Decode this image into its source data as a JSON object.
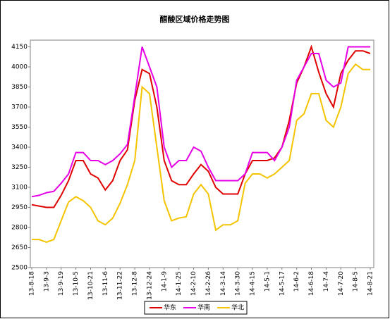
{
  "chart_data": {
    "type": "line",
    "title": "醋酸区域价格走势图",
    "categories": [
      "13-8-18",
      null,
      "13-9-3",
      null,
      "13-9-19",
      null,
      "13-10-5",
      null,
      "13-10-21",
      null,
      "13-11-6",
      null,
      "13-11-22",
      null,
      "13-12-8",
      null,
      "13-12-24",
      null,
      "14-1-9",
      null,
      "14-1-25",
      null,
      "14-2-10",
      null,
      "14-2-26",
      null,
      "14-3-14",
      null,
      "14-3-30",
      null,
      "14-4-15",
      null,
      "14-5-1",
      null,
      "14-5-17",
      null,
      "14-6-2",
      null,
      "14-6-18",
      null,
      "14-7-4",
      null,
      "14-7-20",
      null,
      "14-8-5",
      null,
      "14-8-21"
    ],
    "series": [
      {
        "name": "华东",
        "color": "#e00000",
        "values": [
          2970,
          2960,
          2950,
          2950,
          3040,
          3150,
          3300,
          3300,
          3200,
          3170,
          3080,
          3150,
          3300,
          3380,
          3750,
          3980,
          3950,
          3700,
          3300,
          3150,
          3120,
          3120,
          3200,
          3270,
          3220,
          3100,
          3050,
          3050,
          3050,
          3200,
          3300,
          3300,
          3300,
          3320,
          3400,
          3600,
          3880,
          4000,
          4150,
          3960,
          3800,
          3700,
          3950,
          4050,
          4120,
          4120,
          4100
        ]
      },
      {
        "name": "华南",
        "color": "#e600e6",
        "values": [
          3030,
          3040,
          3060,
          3070,
          3130,
          3200,
          3360,
          3360,
          3300,
          3300,
          3270,
          3300,
          3350,
          3420,
          3780,
          4150,
          4000,
          3850,
          3400,
          3250,
          3300,
          3300,
          3400,
          3370,
          3250,
          3150,
          3150,
          3150,
          3150,
          3200,
          3360,
          3360,
          3360,
          3300,
          3400,
          3550,
          3900,
          4000,
          4100,
          4100,
          3900,
          3850,
          3880,
          4150,
          4150,
          4150,
          4150
        ]
      },
      {
        "name": "华北",
        "color": "#f5c400",
        "values": [
          2710,
          2710,
          2690,
          2710,
          2850,
          2990,
          3030,
          3000,
          2950,
          2850,
          2820,
          2870,
          2980,
          3120,
          3300,
          3850,
          3800,
          3400,
          3000,
          2850,
          2870,
          2880,
          3050,
          3120,
          3050,
          2780,
          2820,
          2820,
          2850,
          3130,
          3200,
          3200,
          3170,
          3200,
          3250,
          3300,
          3600,
          3650,
          3800,
          3800,
          3600,
          3550,
          3700,
          3950,
          4020,
          3980,
          3980
        ]
      }
    ],
    "ylim": [
      2500,
      4200
    ],
    "yticks": [
      2500,
      2650,
      2800,
      2950,
      3100,
      3250,
      3400,
      3550,
      3700,
      3850,
      4000,
      4150
    ],
    "grid": false,
    "legend": "bottom"
  }
}
